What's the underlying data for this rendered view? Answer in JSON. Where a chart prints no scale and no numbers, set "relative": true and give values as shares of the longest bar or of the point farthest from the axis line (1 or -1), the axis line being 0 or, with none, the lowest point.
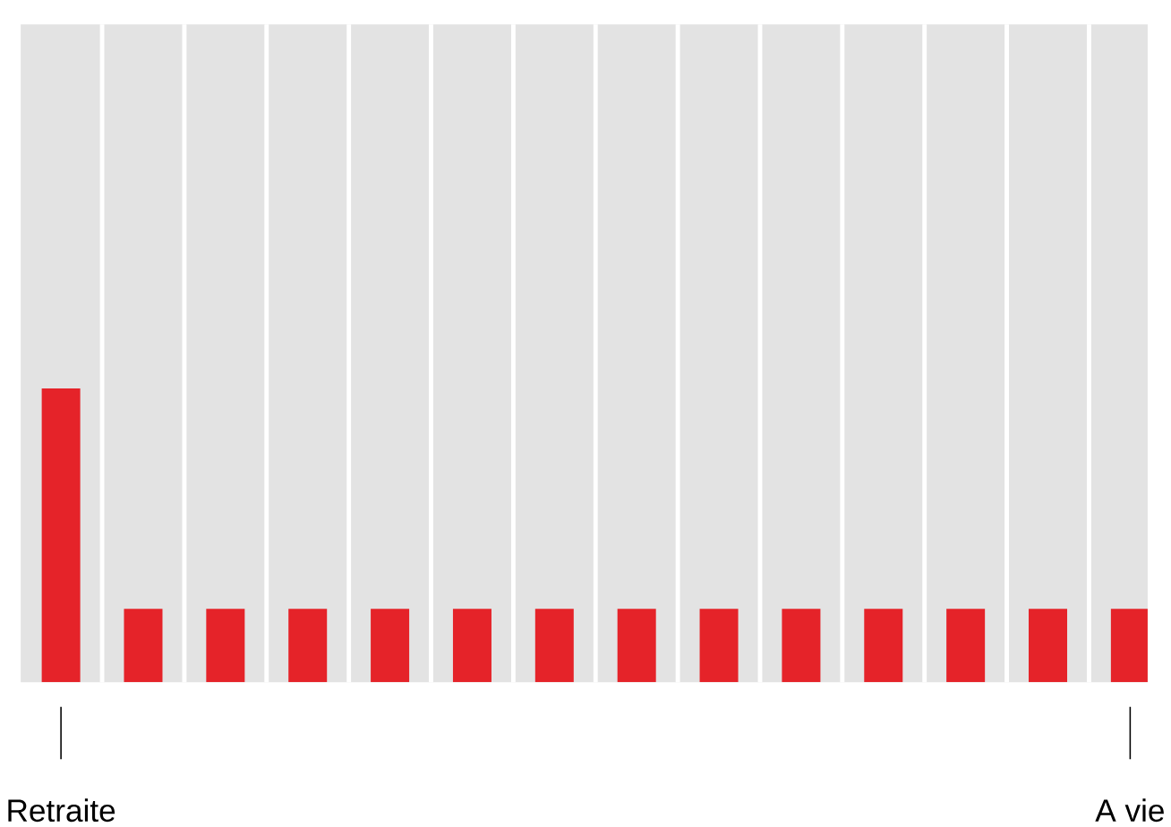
{
  "chart_data": {
    "type": "bar",
    "relative": true,
    "categories": [
      "Retraite",
      null,
      null,
      null,
      null,
      null,
      null,
      null,
      null,
      null,
      null,
      null,
      null,
      "A vie"
    ],
    "values": [
      1,
      0.25,
      0.25,
      0.25,
      0.25,
      0.25,
      0.25,
      0.25,
      0.25,
      0.25,
      0.25,
      0.25,
      0.25,
      0.25
    ],
    "color": "#e52329"
  }
}
